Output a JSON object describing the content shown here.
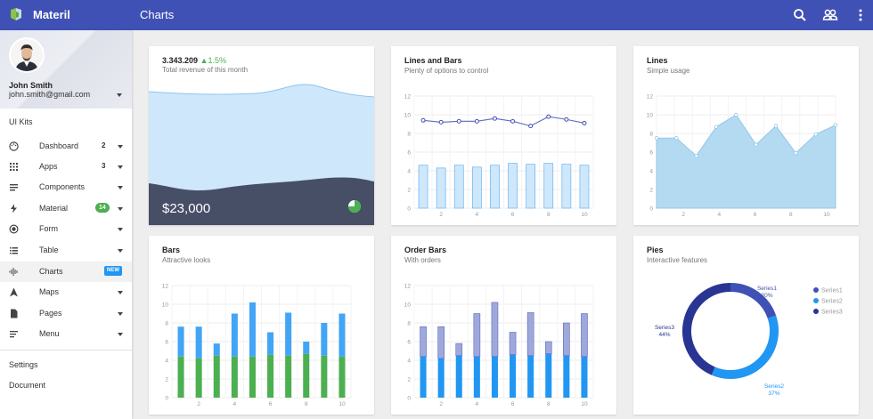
{
  "topbar": {
    "brand": "Materil",
    "page_title": "Charts"
  },
  "profile": {
    "name": "John Smith",
    "email": "john.smith@gmail.com"
  },
  "sidebar": {
    "section_title": "UI Kits",
    "items": [
      {
        "label": "Dashboard",
        "count": "2",
        "icon": "palette-icon"
      },
      {
        "label": "Apps",
        "count": "3",
        "icon": "apps-grid-icon"
      },
      {
        "label": "Components",
        "icon": "components-icon"
      },
      {
        "label": "Material",
        "badge": "14",
        "icon": "bolt-icon"
      },
      {
        "label": "Form",
        "icon": "radio-icon"
      },
      {
        "label": "Table",
        "icon": "list-icon"
      },
      {
        "label": "Charts",
        "badge_new": "NEW",
        "icon": "sound-bars-icon"
      },
      {
        "label": "Maps",
        "icon": "navigation-icon"
      },
      {
        "label": "Pages",
        "icon": "page-icon"
      },
      {
        "label": "Menu",
        "icon": "menu-lines-icon"
      }
    ],
    "footer": [
      "Settings",
      "Document"
    ]
  },
  "colors": {
    "primary": "#3f51b5",
    "light_blue": "#bbdefb",
    "blue": "#42a5f5",
    "green": "#4caf50",
    "dark_slate": "#474f66"
  },
  "revenue": {
    "value": "3.343.209",
    "change": "1.5%",
    "subtitle": "Total revenue of this month",
    "big": "$23,000"
  },
  "cards": {
    "lines_bars": {
      "title": "Lines and Bars",
      "subtitle": "Plenty of options to control"
    },
    "lines": {
      "title": "Lines",
      "subtitle": "Simple usage"
    },
    "bars": {
      "title": "Bars",
      "subtitle": "Attractive looks"
    },
    "order_bars": {
      "title": "Order Bars",
      "subtitle": "With orders"
    },
    "pies": {
      "title": "Pies",
      "subtitle": "Interactive features"
    }
  },
  "chart_data": [
    {
      "type": "line",
      "x": [
        1,
        2,
        3,
        4,
        5,
        6,
        7,
        8,
        9,
        10
      ],
      "series": [
        {
          "values": [
            9.4,
            9.2,
            9.3,
            9.3,
            9.6,
            9.3,
            8.8,
            9.8,
            9.5,
            9.1
          ]
        }
      ],
      "bars": [
        4.6,
        4.3,
        4.6,
        4.4,
        4.6,
        4.8,
        4.7,
        4.8,
        4.7,
        4.6
      ],
      "xticks": [
        "2",
        "4",
        "6",
        "8",
        "10"
      ],
      "yticks": [
        "0",
        "2",
        "4",
        "6",
        "8",
        "10",
        "12"
      ],
      "ylim": [
        0,
        12
      ]
    },
    {
      "type": "area",
      "x": [
        1,
        2,
        3,
        4,
        5,
        6,
        7,
        8,
        9,
        10
      ],
      "series": [
        {
          "values": [
            7.5,
            7.5,
            5.6,
            8.7,
            10,
            6.8,
            8.8,
            5.9,
            7.9,
            8.9
          ]
        }
      ],
      "xticks": [
        "2",
        "4",
        "6",
        "8",
        "10"
      ],
      "yticks": [
        "0",
        "2",
        "4",
        "6",
        "8",
        "10",
        "12"
      ],
      "ylim": [
        0,
        12
      ]
    },
    {
      "type": "bar",
      "categories": [
        1,
        2,
        3,
        4,
        5,
        6,
        7,
        8,
        9,
        10
      ],
      "series": [
        {
          "values": [
            4.4,
            4.2,
            4.5,
            4.4,
            4.4,
            4.6,
            4.5,
            4.7,
            4.5,
            4.4
          ]
        },
        {
          "values": [
            3.2,
            3.4,
            1.3,
            4.6,
            5.8,
            2.4,
            4.6,
            1.3,
            3.5,
            4.6
          ]
        }
      ],
      "xticks": [
        "2",
        "4",
        "6",
        "8",
        "10"
      ],
      "yticks": [
        "0",
        "2",
        "4",
        "6",
        "8",
        "10",
        "12"
      ],
      "ylim": [
        0,
        12
      ]
    },
    {
      "type": "bar",
      "categories": [
        1,
        2,
        3,
        4,
        5,
        6,
        7,
        8,
        9,
        10
      ],
      "series": [
        {
          "values": [
            4.4,
            4.2,
            4.5,
            4.4,
            4.4,
            4.6,
            4.5,
            4.7,
            4.5,
            4.4
          ]
        },
        {
          "values": [
            3.2,
            3.4,
            1.3,
            4.6,
            5.8,
            2.4,
            4.6,
            1.3,
            3.5,
            4.6
          ]
        }
      ],
      "xticks": [
        "2",
        "4",
        "6",
        "8",
        "10"
      ],
      "yticks": [
        "0",
        "2",
        "4",
        "6",
        "8",
        "10",
        "12"
      ],
      "ylim": [
        0,
        12
      ]
    },
    {
      "type": "pie",
      "series": [
        {
          "name": "Series1",
          "value": 20,
          "label": "20%"
        },
        {
          "name": "Series2",
          "value": 37,
          "label": "37%"
        },
        {
          "name": "Series3",
          "value": 44,
          "label": "44%"
        }
      ],
      "legend": [
        "Series1",
        "Series2",
        "Series3"
      ],
      "legend_position": "right"
    }
  ]
}
